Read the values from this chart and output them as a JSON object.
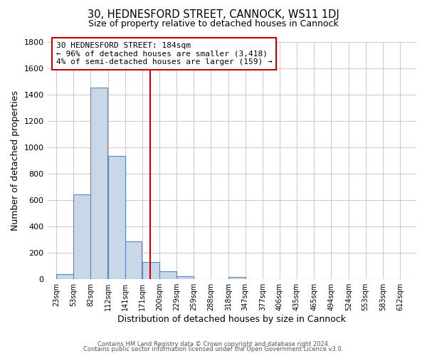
{
  "title": "30, HEDNESFORD STREET, CANNOCK, WS11 1DJ",
  "subtitle": "Size of property relative to detached houses in Cannock",
  "xlabel": "Distribution of detached houses by size in Cannock",
  "ylabel": "Number of detached properties",
  "bar_left_edges": [
    23,
    53,
    82,
    112,
    141,
    171,
    200,
    229,
    259,
    288,
    318,
    347,
    377,
    406,
    435,
    465,
    494,
    524,
    553,
    583
  ],
  "bar_heights": [
    40,
    645,
    1455,
    935,
    290,
    130,
    60,
    25,
    0,
    0,
    15,
    0,
    0,
    0,
    0,
    0,
    0,
    0,
    0,
    0
  ],
  "bin_width": 29,
  "bar_color": "#c8d8e8",
  "bar_edge_color": "#5588bb",
  "vline_x": 184,
  "vline_color": "#cc0000",
  "annotation_title": "30 HEDNESFORD STREET: 184sqm",
  "annotation_line1": "← 96% of detached houses are smaller (3,418)",
  "annotation_line2": "4% of semi-detached houses are larger (159) →",
  "annotation_box_color": "#ffffff",
  "annotation_box_edge": "#cc0000",
  "tick_labels": [
    "23sqm",
    "53sqm",
    "82sqm",
    "112sqm",
    "141sqm",
    "171sqm",
    "200sqm",
    "229sqm",
    "259sqm",
    "288sqm",
    "318sqm",
    "347sqm",
    "377sqm",
    "406sqm",
    "435sqm",
    "465sqm",
    "494sqm",
    "524sqm",
    "553sqm",
    "583sqm",
    "612sqm"
  ],
  "tick_positions": [
    23,
    53,
    82,
    112,
    141,
    171,
    200,
    229,
    259,
    288,
    318,
    347,
    377,
    406,
    435,
    465,
    494,
    524,
    553,
    583,
    612
  ],
  "ylim": [
    0,
    1800
  ],
  "xlim": [
    8,
    640
  ],
  "yticks": [
    0,
    200,
    400,
    600,
    800,
    1000,
    1200,
    1400,
    1600,
    1800
  ],
  "footer_line1": "Contains HM Land Registry data © Crown copyright and database right 2024.",
  "footer_line2": "Contains public sector information licensed under the Open Government Licence v3.0.",
  "bg_color": "#ffffff",
  "grid_color": "#cccccc"
}
